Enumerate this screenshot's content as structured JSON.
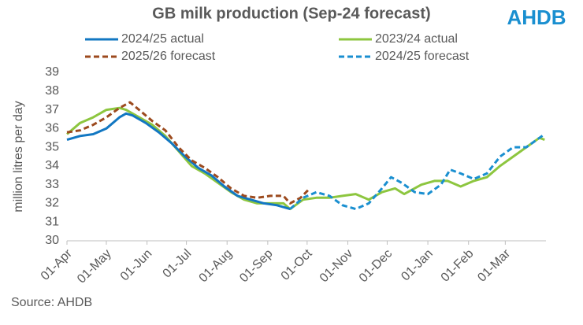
{
  "logo": "AHDB",
  "source": "Source: AHDB",
  "chart_data": {
    "type": "line",
    "title": "GB milk production (Sep-24 forecast)",
    "y_label": "million litres per day",
    "xlim": [
      0,
      365
    ],
    "xticks": [
      {
        "value": 0,
        "label": "01-Apr"
      },
      {
        "value": 30,
        "label": "01-May"
      },
      {
        "value": 61,
        "label": "01-Jun"
      },
      {
        "value": 91,
        "label": "01-Jul"
      },
      {
        "value": 122,
        "label": "01-Aug"
      },
      {
        "value": 153,
        "label": "01-Sep"
      },
      {
        "value": 183,
        "label": "01-Oct"
      },
      {
        "value": 214,
        "label": "01-Nov"
      },
      {
        "value": 244,
        "label": "01-Dec"
      },
      {
        "value": 275,
        "label": "01-Jan"
      },
      {
        "value": 306,
        "label": "01-Feb"
      },
      {
        "value": 334,
        "label": "01-Mar"
      }
    ],
    "ylim": [
      30,
      39
    ],
    "yticks": [
      30,
      31,
      32,
      33,
      34,
      35,
      36,
      37,
      38,
      39
    ],
    "grid": false,
    "series": [
      {
        "name": "2024/25 actual",
        "color": "#1277c2",
        "dashed": false,
        "x": [
          0,
          10,
          20,
          30,
          40,
          45,
          50,
          60,
          70,
          80,
          90,
          100,
          110,
          120,
          130,
          140,
          150,
          160,
          170
        ],
        "values": [
          35.4,
          35.6,
          35.7,
          36.0,
          36.6,
          36.8,
          36.7,
          36.3,
          35.8,
          35.2,
          34.5,
          33.9,
          33.5,
          32.9,
          32.4,
          32.2,
          32.0,
          31.9,
          31.7
        ]
      },
      {
        "name": "2023/24 actual",
        "color": "#8dc63f",
        "dashed": false,
        "x": [
          0,
          10,
          20,
          30,
          40,
          45,
          55,
          65,
          75,
          85,
          95,
          105,
          115,
          125,
          135,
          145,
          155,
          165,
          170,
          180,
          190,
          200,
          210,
          220,
          230,
          240,
          250,
          257,
          270,
          280,
          290,
          300,
          310,
          320,
          330,
          340,
          350,
          360,
          364
        ],
        "values": [
          35.7,
          36.3,
          36.6,
          37.0,
          37.1,
          37.0,
          36.6,
          36.2,
          35.6,
          34.8,
          34.0,
          33.6,
          33.1,
          32.6,
          32.2,
          32.0,
          32.0,
          32.0,
          31.7,
          32.2,
          32.3,
          32.3,
          32.4,
          32.5,
          32.2,
          32.6,
          32.8,
          32.5,
          33.0,
          33.2,
          33.2,
          32.9,
          33.2,
          33.4,
          34.0,
          34.5,
          35.0,
          35.5,
          35.4
        ]
      },
      {
        "name": "2025/26 forecast",
        "color": "#9c4a1e",
        "dashed": true,
        "x": [
          0,
          10,
          20,
          30,
          40,
          48,
          55,
          65,
          75,
          85,
          95,
          105,
          115,
          125,
          135,
          145,
          155,
          165,
          170,
          178,
          185
        ],
        "values": [
          35.8,
          35.9,
          36.2,
          36.6,
          37.1,
          37.4,
          37.0,
          36.4,
          35.9,
          35.0,
          34.3,
          33.9,
          33.4,
          32.8,
          32.4,
          32.3,
          32.4,
          32.4,
          32.0,
          32.3,
          32.8
        ]
      },
      {
        "name": "2024/25 forecast",
        "color": "#1a8fd0",
        "dashed": true,
        "x": [
          170,
          180,
          190,
          200,
          210,
          220,
          230,
          240,
          247,
          255,
          265,
          275,
          285,
          292,
          300,
          310,
          320,
          330,
          340,
          350,
          360,
          364
        ],
        "values": [
          31.7,
          32.3,
          32.6,
          32.4,
          31.9,
          31.7,
          32.0,
          32.8,
          33.4,
          33.1,
          32.6,
          32.5,
          33.0,
          33.8,
          33.6,
          33.3,
          33.6,
          34.5,
          35.0,
          35.0,
          35.5,
          35.7
        ]
      }
    ]
  }
}
